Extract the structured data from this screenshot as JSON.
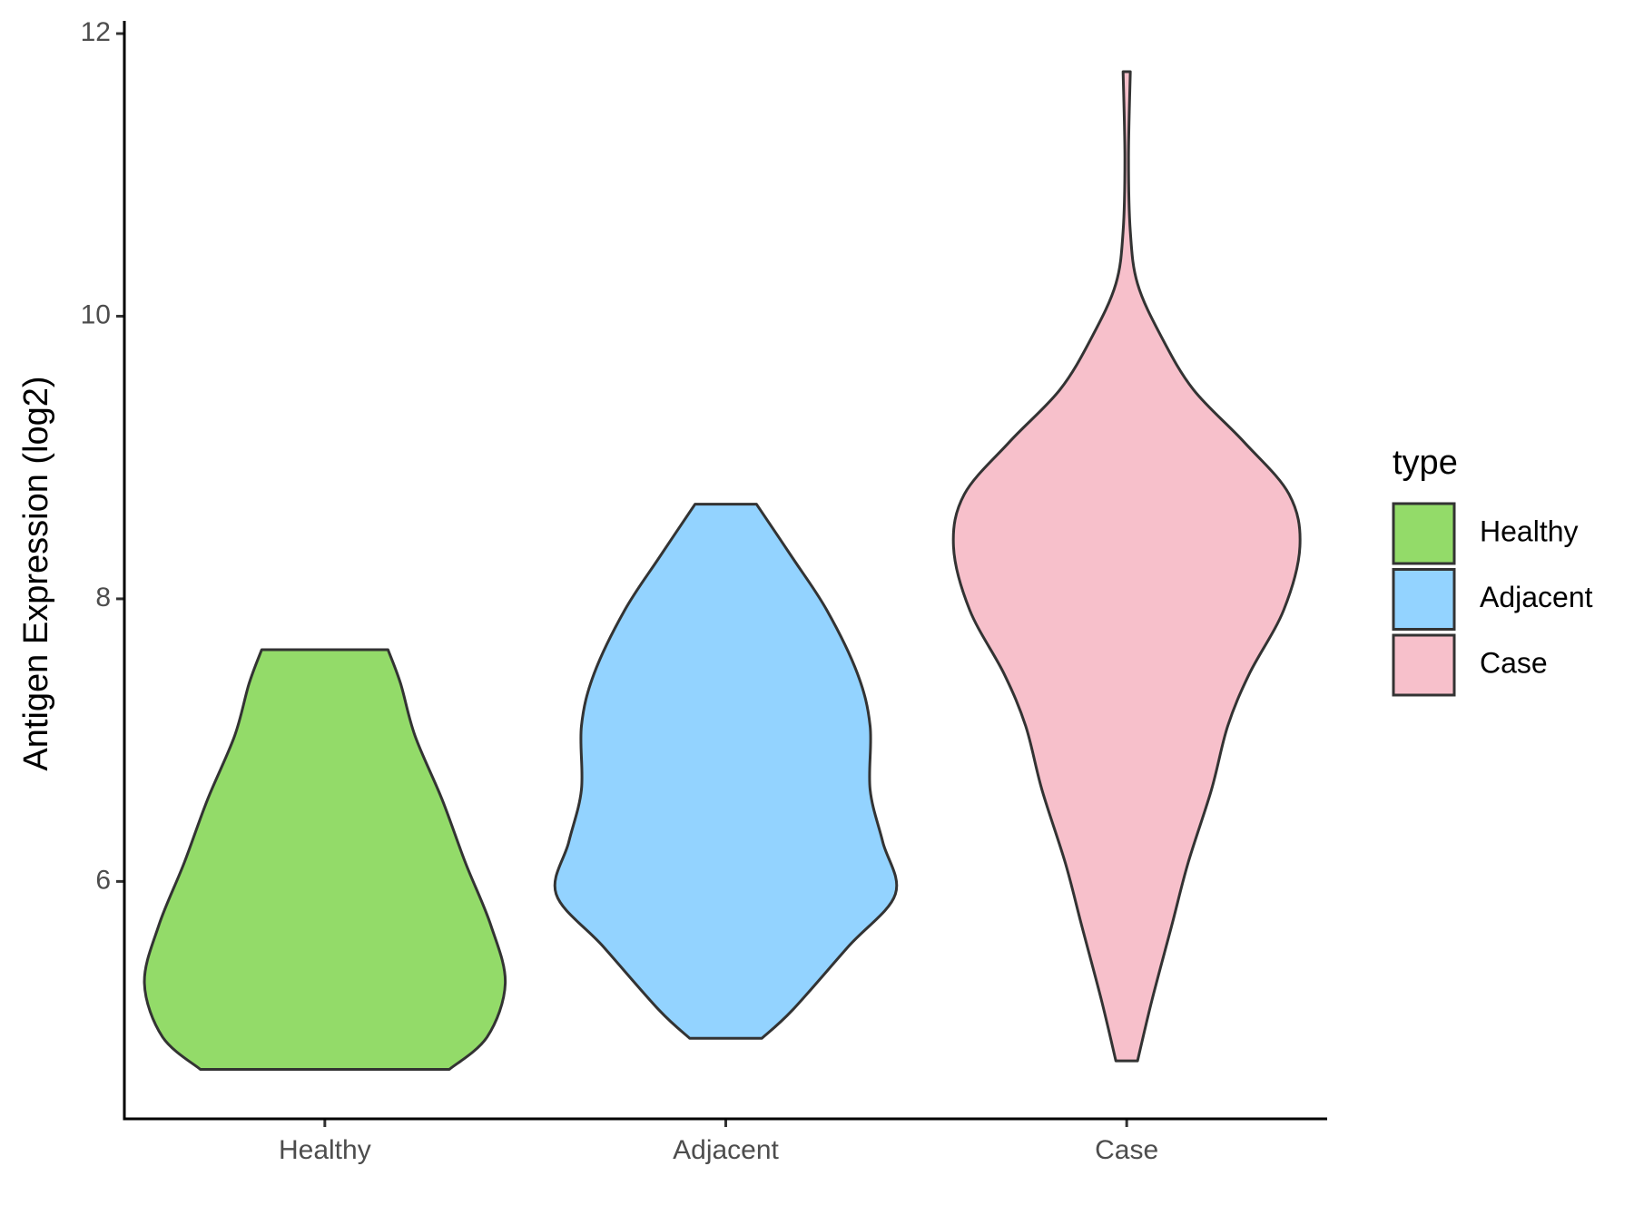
{
  "chart_data": {
    "type": "violin",
    "y_label": "Antigen Expression (log2)",
    "categories": [
      "Healthy",
      "Adjacent",
      "Case"
    ],
    "legend_title": "type",
    "legend_position": "right",
    "ylim": [
      4.32,
      12.09
    ],
    "yticks": [
      6,
      8,
      10,
      12
    ],
    "grid": false,
    "series": [
      {
        "name": "Healthy",
        "color": "#93DB69",
        "y": [
          4.67,
          4.9,
          5.28,
          5.69,
          6.13,
          6.58,
          7.03,
          7.4,
          7.64
        ],
        "density": [
          0.69,
          0.9,
          1.0,
          0.92,
          0.78,
          0.65,
          0.5,
          0.42,
          0.35
        ]
      },
      {
        "name": "Adjacent",
        "color": "#93D3FF",
        "y": [
          4.89,
          5.09,
          5.54,
          5.91,
          6.28,
          6.65,
          7.1,
          7.47,
          7.92,
          8.29,
          8.67
        ],
        "density": [
          0.2,
          0.37,
          0.68,
          0.94,
          0.87,
          0.8,
          0.8,
          0.73,
          0.56,
          0.37,
          0.17
        ]
      },
      {
        "name": "Case",
        "color": "#F7C0CB",
        "y": [
          4.73,
          5.16,
          5.69,
          6.13,
          6.65,
          7.1,
          7.47,
          7.92,
          8.37,
          8.74,
          9.11,
          9.48,
          9.86,
          10.23,
          10.6,
          11.12,
          11.73
        ],
        "density": [
          0.06,
          0.14,
          0.25,
          0.34,
          0.47,
          0.56,
          0.68,
          0.87,
          0.96,
          0.9,
          0.65,
          0.37,
          0.19,
          0.06,
          0.02,
          0.01,
          0.02
        ]
      }
    ]
  }
}
